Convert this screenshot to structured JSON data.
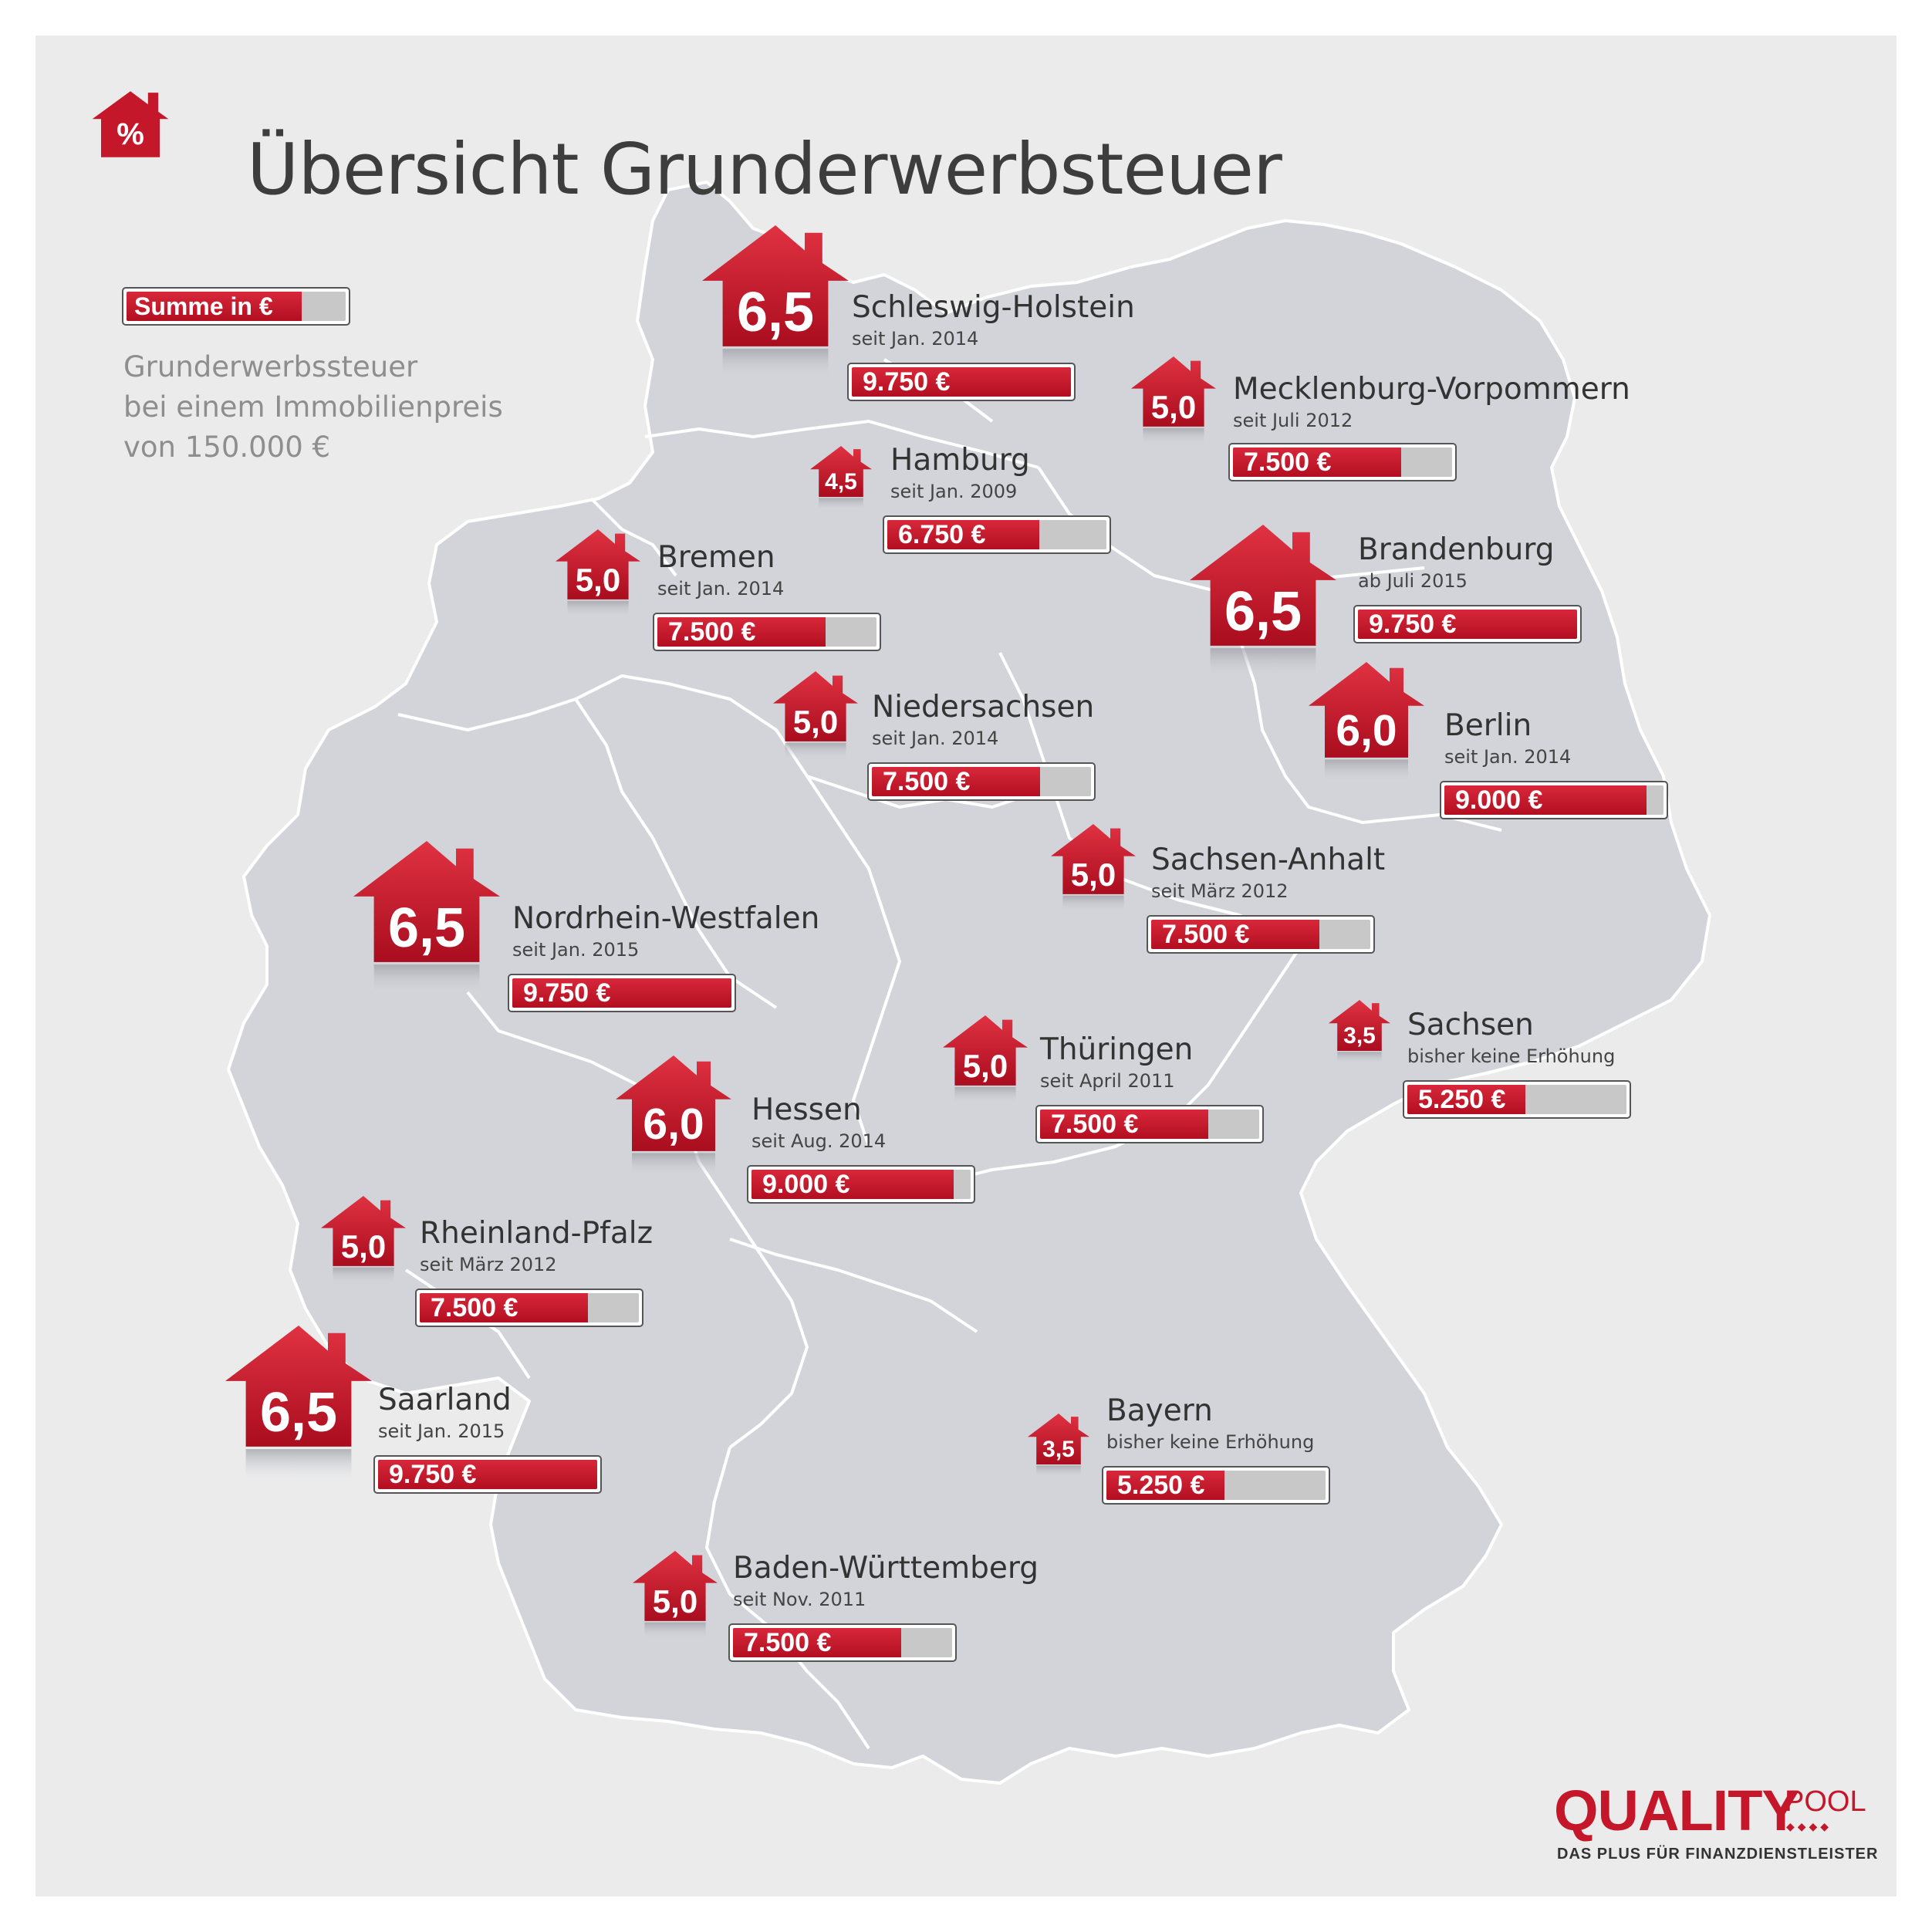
{
  "title": "Übersicht Grunderwerbsteuer",
  "title_icon": "percent-house-icon",
  "title_icon_text": "%",
  "legend": {
    "label": "Summe in €",
    "fill_fraction": 0.8
  },
  "description": [
    "Grunderwerbssteuer",
    "bei einem Immobilienpreis",
    "von 150.000 €"
  ],
  "colors": {
    "accent": "#c4182a",
    "map_fill": "#d2d4d9",
    "background": "#ebebec"
  },
  "states": [
    {
      "name": "Schleswig-Holstein",
      "rate": "6,5",
      "since": "seit Jan. 2014",
      "amount": "9.750 €",
      "fill": 1.0
    },
    {
      "name": "Mecklenburg-Vorpommern",
      "rate": "5,0",
      "since": "seit Juli 2012",
      "amount": "7.500 €",
      "fill": 0.769
    },
    {
      "name": "Hamburg",
      "rate": "4,5",
      "since": "seit Jan. 2009",
      "amount": "6.750 €",
      "fill": 0.692
    },
    {
      "name": "Bremen",
      "rate": "5,0",
      "since": "seit Jan. 2014",
      "amount": "7.500 €",
      "fill": 0.769
    },
    {
      "name": "Brandenburg",
      "rate": "6,5",
      "since": "ab Juli 2015",
      "amount": "9.750 €",
      "fill": 1.0
    },
    {
      "name": "Niedersachsen",
      "rate": "5,0",
      "since": "seit Jan. 2014",
      "amount": "7.500 €",
      "fill": 0.769
    },
    {
      "name": "Berlin",
      "rate": "6,0",
      "since": "seit Jan. 2014",
      "amount": "9.000 €",
      "fill": 0.923
    },
    {
      "name": "Sachsen-Anhalt",
      "rate": "5,0",
      "since": "seit März 2012",
      "amount": "7.500 €",
      "fill": 0.769
    },
    {
      "name": "Nordrhein-Westfalen",
      "rate": "6,5",
      "since": "seit Jan. 2015",
      "amount": "9.750 €",
      "fill": 1.0
    },
    {
      "name": "Sachsen",
      "rate": "3,5",
      "since": "bisher keine Erhöhung",
      "amount": "5.250 €",
      "fill": 0.538
    },
    {
      "name": "Thüringen",
      "rate": "5,0",
      "since": "seit April 2011",
      "amount": "7.500 €",
      "fill": 0.769
    },
    {
      "name": "Hessen",
      "rate": "6,0",
      "since": "seit Aug. 2014",
      "amount": "9.000 €",
      "fill": 0.923
    },
    {
      "name": "Rheinland-Pfalz",
      "rate": "5,0",
      "since": "seit März 2012",
      "amount": "7.500 €",
      "fill": 0.769
    },
    {
      "name": "Saarland",
      "rate": "6,5",
      "since": "seit Jan. 2015",
      "amount": "9.750 €",
      "fill": 1.0
    },
    {
      "name": "Bayern",
      "rate": "3,5",
      "since": "bisher keine Erhöhung",
      "amount": "5.250 €",
      "fill": 0.538
    },
    {
      "name": "Baden-Württemberg",
      "rate": "5,0",
      "since": "seit Nov. 2011",
      "amount": "7.500 €",
      "fill": 0.769
    }
  ],
  "logo": {
    "main": "QUALITY",
    "pool": "POOL",
    "dots": "◆◆◆◆",
    "tagline": "DAS PLUS FÜR FINANZDIENSTLEISTER"
  }
}
